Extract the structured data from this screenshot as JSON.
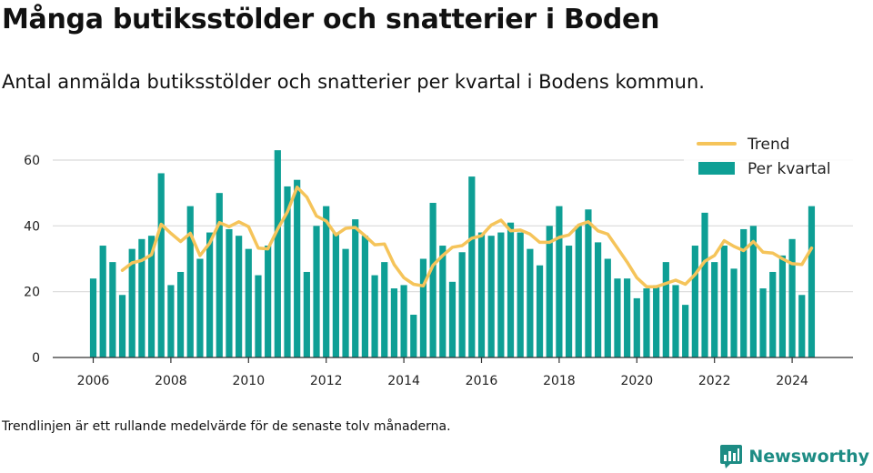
{
  "title": "Många butiksstölder och snatterier i Boden",
  "subtitle": "Antal anmälda butiksstölder och snatterier per kvartal i Bodens kommun.",
  "note": "Trendlinjen är ett rullande medelvärde för de senaste tolv månaderna.",
  "brand": {
    "name": "Newsworthy",
    "icon": "newsworthy-logo-icon"
  },
  "colors": {
    "bars": "#0e9f95",
    "trend": "#f5c45a",
    "grid": "#d9d9d9",
    "axis": "#333333"
  },
  "chart_data": {
    "type": "bar",
    "title": "",
    "xlabel": "",
    "ylabel": "",
    "ylim": [
      0,
      70
    ],
    "yticks": [
      0,
      20,
      40,
      60
    ],
    "xticks": [
      2006,
      2008,
      2010,
      2012,
      2014,
      2016,
      2018,
      2020,
      2022,
      2024
    ],
    "grid": true,
    "legend_position": "top-right",
    "x_start": 2006.0,
    "x_step": 0.25,
    "series": [
      {
        "name": "Per kvartal",
        "kind": "bar",
        "values": [
          24,
          34,
          29,
          19,
          33,
          36,
          37,
          56,
          22,
          26,
          46,
          30,
          38,
          50,
          39,
          37,
          33,
          25,
          34,
          63,
          52,
          54,
          26,
          40,
          46,
          38,
          33,
          42,
          37,
          25,
          29,
          21,
          22,
          13,
          30,
          47,
          34,
          23,
          32,
          55,
          38,
          37,
          38,
          41,
          38,
          33,
          28,
          40,
          46,
          34,
          40,
          45,
          35,
          30,
          24,
          24,
          18,
          21,
          22,
          29,
          22,
          16,
          34,
          44,
          29,
          34,
          27,
          39,
          40,
          21,
          26,
          31,
          36,
          19,
          46
        ]
      },
      {
        "name": "Trend",
        "kind": "line",
        "x_start": 2006.75,
        "values": [
          26.5,
          28.75,
          29.5,
          31.25,
          40.5,
          37.75,
          35.25,
          37.75,
          31.0,
          34.75,
          41.0,
          39.75,
          41.25,
          39.75,
          33.25,
          33.0,
          39.0,
          44.25,
          51.75,
          48.75,
          43.0,
          41.5,
          37.25,
          39.25,
          39.5,
          37.0,
          34.25,
          34.5,
          28.25,
          24.25,
          22.25,
          21.75,
          28.0,
          31.0,
          33.5,
          34.0,
          36.25,
          37.0,
          40.25,
          41.75,
          38.5,
          38.75,
          37.5,
          35.0,
          35.0,
          36.5,
          37.25,
          40.25,
          41.25,
          38.5,
          37.5,
          33.25,
          29.0,
          24.25,
          21.5,
          21.5,
          22.5,
          23.5,
          22.25,
          25.25,
          29.25,
          31.0,
          35.5,
          33.75,
          32.5,
          35.25,
          32.0,
          31.75,
          30.0,
          28.5,
          28.25,
          33.25
        ]
      }
    ]
  }
}
